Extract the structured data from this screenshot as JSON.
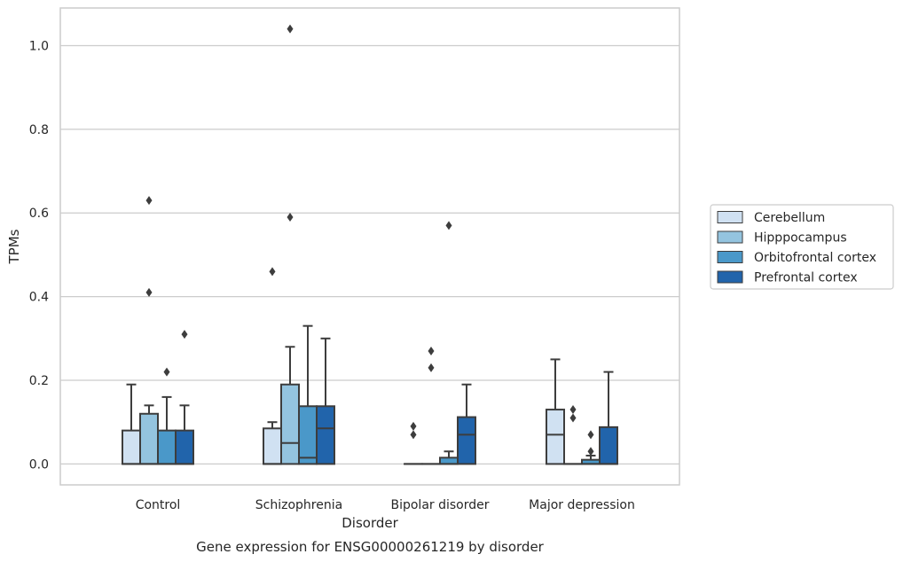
{
  "chart_data": {
    "type": "box",
    "caption": "Gene expression for ENSG00000261219 by disorder",
    "xlabel": "Disorder",
    "ylabel": "TPMs",
    "ylim": [
      -0.05,
      1.09
    ],
    "yticks": [
      0.0,
      0.2,
      0.4,
      0.6,
      0.8,
      1.0
    ],
    "ytick_labels": [
      "0.0",
      "0.2",
      "0.4",
      "0.6",
      "0.8",
      "1.0"
    ],
    "grid": "horizontal",
    "legend_position": "right",
    "categories": [
      "Control",
      "Schizophrenia",
      "Bipolar disorder",
      "Major depression"
    ],
    "series": [
      {
        "name": "Cerebellum",
        "color": "#d0e1f2",
        "boxes": [
          {
            "q1": 0.0,
            "median": 0.0,
            "q3": 0.08,
            "whisker_low": 0.0,
            "whisker_high": 0.19,
            "outliers": []
          },
          {
            "q1": 0.0,
            "median": 0.0,
            "q3": 0.085,
            "whisker_low": 0.0,
            "whisker_high": 0.1,
            "outliers": [
              0.46
            ]
          },
          {
            "q1": 0.0,
            "median": 0.0,
            "q3": 0.0,
            "whisker_low": 0.0,
            "whisker_high": 0.0,
            "outliers": [
              0.07,
              0.09
            ]
          },
          {
            "q1": 0.0,
            "median": 0.07,
            "q3": 0.13,
            "whisker_low": 0.0,
            "whisker_high": 0.25,
            "outliers": []
          }
        ]
      },
      {
        "name": "Hipppocampus",
        "color": "#94c4df",
        "boxes": [
          {
            "q1": 0.0,
            "median": 0.0,
            "q3": 0.12,
            "whisker_low": 0.0,
            "whisker_high": 0.14,
            "outliers": [
              0.41,
              0.63
            ]
          },
          {
            "q1": 0.0,
            "median": 0.05,
            "q3": 0.19,
            "whisker_low": 0.0,
            "whisker_high": 0.28,
            "outliers": [
              0.59,
              1.04
            ]
          },
          {
            "q1": 0.0,
            "median": 0.0,
            "q3": 0.0,
            "whisker_low": 0.0,
            "whisker_high": 0.0,
            "outliers": [
              0.23,
              0.27
            ]
          },
          {
            "q1": 0.0,
            "median": 0.0,
            "q3": 0.0,
            "whisker_low": 0.0,
            "whisker_high": 0.0,
            "outliers": [
              0.11,
              0.13
            ]
          }
        ]
      },
      {
        "name": "Orbitofrontal cortex",
        "color": "#4a98c9",
        "boxes": [
          {
            "q1": 0.0,
            "median": 0.0,
            "q3": 0.08,
            "whisker_low": 0.0,
            "whisker_high": 0.16,
            "outliers": [
              0.22
            ]
          },
          {
            "q1": 0.0,
            "median": 0.015,
            "q3": 0.138,
            "whisker_low": 0.0,
            "whisker_high": 0.33,
            "outliers": []
          },
          {
            "q1": 0.0,
            "median": 0.0,
            "q3": 0.015,
            "whisker_low": 0.0,
            "whisker_high": 0.03,
            "outliers": [
              0.57
            ]
          },
          {
            "q1": 0.0,
            "median": 0.0,
            "q3": 0.01,
            "whisker_low": 0.0,
            "whisker_high": 0.02,
            "outliers": [
              0.03,
              0.07
            ]
          }
        ]
      },
      {
        "name": "Prefrontal cortex",
        "color": "#2164ab",
        "boxes": [
          {
            "q1": 0.0,
            "median": 0.0,
            "q3": 0.08,
            "whisker_low": 0.0,
            "whisker_high": 0.14,
            "outliers": [
              0.31
            ]
          },
          {
            "q1": 0.0,
            "median": 0.085,
            "q3": 0.138,
            "whisker_low": 0.0,
            "whisker_high": 0.3,
            "outliers": []
          },
          {
            "q1": 0.0,
            "median": 0.07,
            "q3": 0.112,
            "whisker_low": 0.0,
            "whisker_high": 0.19,
            "outliers": []
          },
          {
            "q1": 0.0,
            "median": 0.0,
            "q3": 0.088,
            "whisker_low": 0.0,
            "whisker_high": 0.22,
            "outliers": []
          }
        ]
      }
    ]
  }
}
